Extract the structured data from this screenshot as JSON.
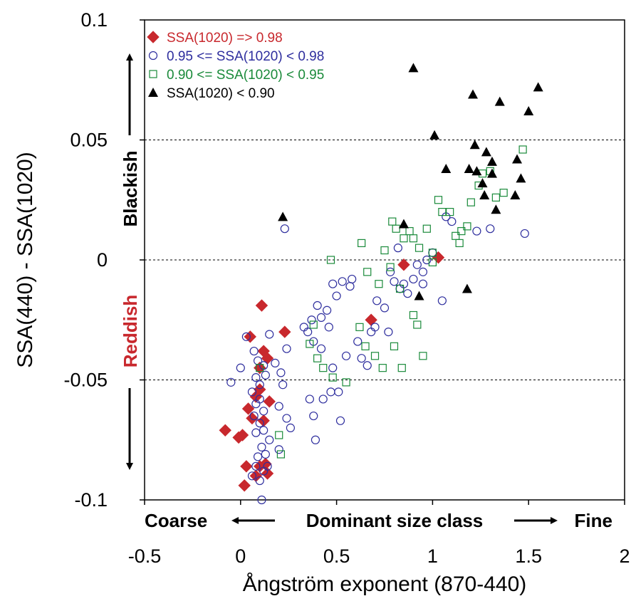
{
  "chart_data": {
    "type": "scatter",
    "xlabel": "Ångström exponent (870-440)",
    "ylabel": "SSA(440) - SSA(1020)",
    "xlim": [
      -0.5,
      2
    ],
    "ylim": [
      -0.1,
      0.1
    ],
    "xticks": [
      "-0.5",
      "0",
      "0.5",
      "1",
      "1.5",
      "2"
    ],
    "yticks": [
      "0.1",
      "0.05",
      "0",
      "-0.05",
      "-0.1"
    ],
    "ytick_values": [
      0.1,
      0.05,
      0,
      -0.05,
      -0.1
    ],
    "xtick_values": [
      -0.5,
      0,
      0.5,
      1,
      1.5,
      2
    ],
    "hlines": [
      0.05,
      0,
      -0.05
    ],
    "annotations": {
      "coarse": "Coarse",
      "dominant": "Dominant size class",
      "fine": "Fine",
      "blackish": "Blackish",
      "reddish": "Reddish"
    },
    "legend_position": "top-left",
    "series": [
      {
        "name": "SSA(1020) => 0.98",
        "color": "#c8282d",
        "marker": "diamond",
        "points": [
          [
            0.11,
            -0.019
          ],
          [
            0.23,
            -0.03
          ],
          [
            0.05,
            -0.032
          ],
          [
            0.12,
            -0.038
          ],
          [
            0.14,
            -0.041
          ],
          [
            0.1,
            -0.045
          ],
          [
            0.1,
            -0.054
          ],
          [
            0.15,
            -0.059
          ],
          [
            0.08,
            -0.057
          ],
          [
            0.04,
            -0.062
          ],
          [
            0.06,
            -0.066
          ],
          [
            0.12,
            -0.067
          ],
          [
            -0.08,
            -0.071
          ],
          [
            -0.01,
            -0.074
          ],
          [
            0.01,
            -0.073
          ],
          [
            0.03,
            -0.086
          ],
          [
            0.1,
            -0.086
          ],
          [
            0.13,
            -0.085
          ],
          [
            0.08,
            -0.09
          ],
          [
            0.14,
            -0.089
          ],
          [
            0.02,
            -0.094
          ],
          [
            0.68,
            -0.025
          ],
          [
            0.85,
            -0.002
          ],
          [
            1.03,
            0.001
          ]
        ]
      },
      {
        "name": "0.95 <= SSA(1020) < 0.98",
        "color": "#2e2e9e",
        "marker": "circle",
        "points": [
          [
            0.23,
            0.013
          ],
          [
            -0.05,
            -0.051
          ],
          [
            0.0,
            -0.045
          ],
          [
            0.03,
            -0.032
          ],
          [
            0.07,
            -0.038
          ],
          [
            0.09,
            -0.042
          ],
          [
            0.12,
            -0.044
          ],
          [
            0.08,
            -0.049
          ],
          [
            0.1,
            -0.052
          ],
          [
            0.13,
            -0.048
          ],
          [
            0.06,
            -0.055
          ],
          [
            0.08,
            -0.06
          ],
          [
            0.1,
            -0.058
          ],
          [
            0.12,
            -0.063
          ],
          [
            0.07,
            -0.065
          ],
          [
            0.1,
            -0.068
          ],
          [
            0.08,
            -0.072
          ],
          [
            0.12,
            -0.071
          ],
          [
            0.15,
            -0.075
          ],
          [
            0.11,
            -0.078
          ],
          [
            0.09,
            -0.082
          ],
          [
            0.13,
            -0.081
          ],
          [
            0.08,
            -0.086
          ],
          [
            0.12,
            -0.088
          ],
          [
            0.06,
            -0.09
          ],
          [
            0.1,
            -0.092
          ],
          [
            0.14,
            -0.086
          ],
          [
            0.11,
            -0.1
          ],
          [
            0.15,
            -0.031
          ],
          [
            0.18,
            -0.043
          ],
          [
            0.21,
            -0.047
          ],
          [
            0.22,
            -0.052
          ],
          [
            0.24,
            -0.037
          ],
          [
            0.2,
            -0.061
          ],
          [
            0.24,
            -0.066
          ],
          [
            0.26,
            -0.07
          ],
          [
            0.2,
            -0.079
          ],
          [
            0.36,
            -0.058
          ],
          [
            0.38,
            -0.065
          ],
          [
            0.39,
            -0.075
          ],
          [
            0.43,
            -0.058
          ],
          [
            0.47,
            -0.055
          ],
          [
            0.51,
            -0.055
          ],
          [
            0.52,
            -0.067
          ],
          [
            0.33,
            -0.028
          ],
          [
            0.35,
            -0.03
          ],
          [
            0.37,
            -0.025
          ],
          [
            0.38,
            -0.034
          ],
          [
            0.4,
            -0.019
          ],
          [
            0.42,
            -0.024
          ],
          [
            0.45,
            -0.021
          ],
          [
            0.46,
            -0.028
          ],
          [
            0.48,
            -0.01
          ],
          [
            0.5,
            -0.015
          ],
          [
            0.53,
            -0.009
          ],
          [
            0.57,
            -0.011
          ],
          [
            0.58,
            -0.008
          ],
          [
            0.61,
            -0.034
          ],
          [
            0.63,
            -0.041
          ],
          [
            0.66,
            -0.044
          ],
          [
            0.7,
            -0.028
          ],
          [
            0.71,
            -0.017
          ],
          [
            0.75,
            -0.02
          ],
          [
            0.77,
            -0.03
          ],
          [
            0.78,
            -0.005
          ],
          [
            0.8,
            -0.009
          ],
          [
            0.83,
            -0.012
          ],
          [
            0.85,
            -0.01
          ],
          [
            0.87,
            -0.014
          ],
          [
            0.9,
            -0.008
          ],
          [
            0.92,
            -0.002
          ],
          [
            0.95,
            -0.005
          ],
          [
            0.97,
            0.0
          ],
          [
            1.0,
            0.003
          ],
          [
            1.05,
            -0.017
          ],
          [
            1.07,
            0.018
          ],
          [
            1.1,
            0.016
          ],
          [
            1.23,
            0.012
          ],
          [
            1.3,
            0.013
          ],
          [
            1.48,
            0.011
          ],
          [
            0.42,
            -0.037
          ],
          [
            0.48,
            -0.045
          ],
          [
            0.55,
            -0.04
          ],
          [
            0.68,
            -0.03
          ],
          [
            0.82,
            0.005
          ],
          [
            0.95,
            -0.01
          ]
        ]
      },
      {
        "name": "0.90 <= SSA(1020) < 0.95",
        "color": "#1a8a3a",
        "marker": "square",
        "points": [
          [
            0.1,
            -0.045
          ],
          [
            0.2,
            -0.073
          ],
          [
            0.21,
            -0.081
          ],
          [
            0.36,
            -0.035
          ],
          [
            0.38,
            -0.027
          ],
          [
            0.4,
            -0.041
          ],
          [
            0.43,
            -0.045
          ],
          [
            0.48,
            -0.049
          ],
          [
            0.55,
            -0.051
          ],
          [
            0.62,
            -0.028
          ],
          [
            0.65,
            -0.036
          ],
          [
            0.7,
            -0.04
          ],
          [
            0.74,
            -0.045
          ],
          [
            0.8,
            -0.036
          ],
          [
            0.84,
            -0.045
          ],
          [
            0.9,
            -0.023
          ],
          [
            0.92,
            -0.027
          ],
          [
            0.95,
            -0.04
          ],
          [
            0.47,
            0.0
          ],
          [
            0.63,
            0.007
          ],
          [
            0.66,
            -0.005
          ],
          [
            0.72,
            -0.01
          ],
          [
            0.75,
            0.004
          ],
          [
            0.78,
            -0.003
          ],
          [
            0.81,
            0.013
          ],
          [
            0.85,
            0.009
          ],
          [
            0.88,
            0.012
          ],
          [
            0.9,
            0.009
          ],
          [
            0.93,
            0.005
          ],
          [
            0.97,
            0.013
          ],
          [
            1.0,
            0.003
          ],
          [
            1.03,
            0.025
          ],
          [
            1.05,
            0.02
          ],
          [
            1.09,
            0.02
          ],
          [
            1.12,
            0.01
          ],
          [
            1.15,
            0.012
          ],
          [
            1.18,
            0.014
          ],
          [
            1.2,
            0.024
          ],
          [
            1.24,
            0.031
          ],
          [
            1.26,
            0.036
          ],
          [
            1.3,
            0.037
          ],
          [
            1.33,
            0.026
          ],
          [
            1.37,
            0.028
          ],
          [
            1.47,
            0.046
          ],
          [
            0.79,
            0.016
          ],
          [
            1.14,
            0.007
          ],
          [
            1.0,
            -0.001
          ],
          [
            0.83,
            -0.012
          ]
        ]
      },
      {
        "name": "SSA(1020) < 0.90",
        "color": "#000000",
        "marker": "triangle",
        "points": [
          [
            0.22,
            0.018
          ],
          [
            0.9,
            0.08
          ],
          [
            1.01,
            0.052
          ],
          [
            1.07,
            0.038
          ],
          [
            1.19,
            0.038
          ],
          [
            1.21,
            0.069
          ],
          [
            1.22,
            0.048
          ],
          [
            1.23,
            0.037
          ],
          [
            1.26,
            0.032
          ],
          [
            1.28,
            0.045
          ],
          [
            1.31,
            0.041
          ],
          [
            1.33,
            0.021
          ],
          [
            1.35,
            0.066
          ],
          [
            1.43,
            0.027
          ],
          [
            1.44,
            0.042
          ],
          [
            1.46,
            0.034
          ],
          [
            1.5,
            0.062
          ],
          [
            1.55,
            0.072
          ],
          [
            0.85,
            0.015
          ],
          [
            0.93,
            -0.015
          ],
          [
            1.18,
            -0.012
          ],
          [
            1.31,
            0.036
          ],
          [
            1.27,
            0.027
          ]
        ]
      }
    ]
  }
}
